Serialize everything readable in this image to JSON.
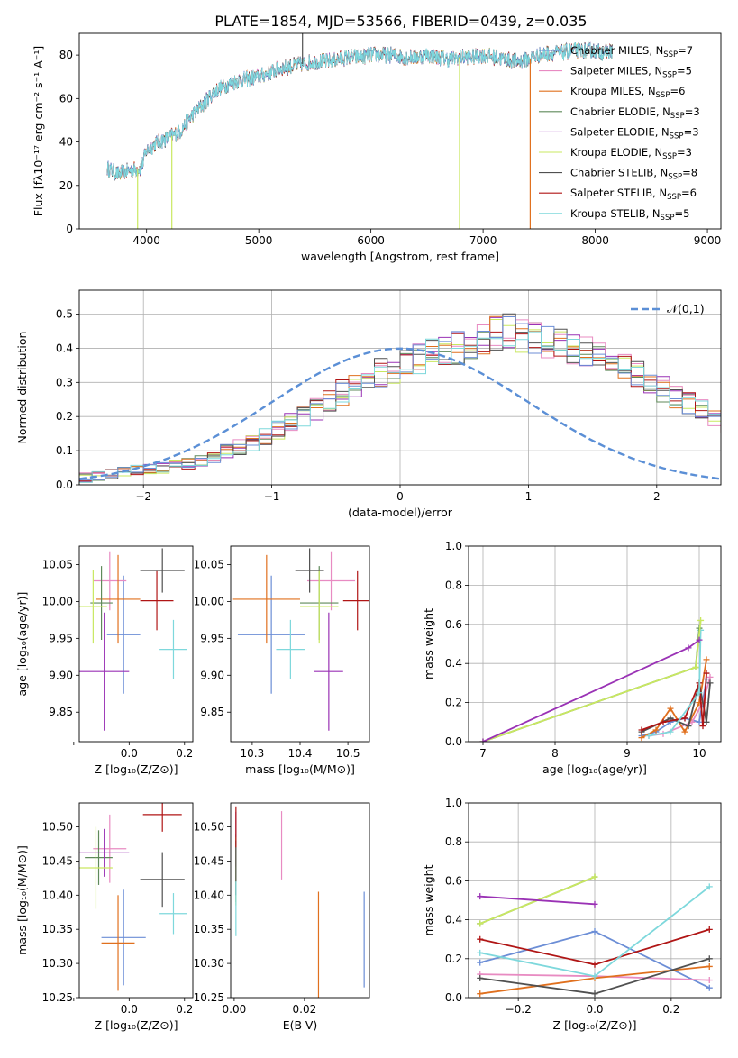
{
  "figure": {
    "title": "PLATE=1854, MJD=53566, FIBERID=0439, z=0.035"
  },
  "models": [
    {
      "name": "Chabrier MILES",
      "nssp": "7",
      "color": "#6c8ed6"
    },
    {
      "name": "Salpeter MILES",
      "nssp": "5",
      "color": "#e88bc2"
    },
    {
      "name": "Kroupa MILES",
      "nssp": "6",
      "color": "#e0701e"
    },
    {
      "name": "Chabrier ELODIE",
      "nssp": "3",
      "color": "#5f8a5a"
    },
    {
      "name": "Salpeter ELODIE",
      "nssp": "3",
      "color": "#9a32b5"
    },
    {
      "name": "Kroupa ELODIE",
      "nssp": "3",
      "color": "#c9e860"
    },
    {
      "name": "Chabrier STELIB",
      "nssp": "8",
      "color": "#505050"
    },
    {
      "name": "Salpeter STELIB",
      "nssp": "6",
      "color": "#b01515"
    },
    {
      "name": "Kroupa STELIB",
      "nssp": "5",
      "color": "#7ed8dc"
    }
  ],
  "chart_data": [
    {
      "id": "spectrum",
      "type": "line",
      "xlabel": "wavelength [Angstrom, rest frame]",
      "ylabel": "Flux [fλ10⁻¹⁷ erg cm⁻² s⁻¹ A⁻¹]",
      "xlim": [
        3400,
        9120
      ],
      "ylim": [
        0,
        90
      ],
      "xticks": [
        4000,
        5000,
        6000,
        7000,
        8000,
        9000
      ],
      "yticks": [
        0,
        20,
        40,
        60,
        80
      ],
      "grid": false,
      "legend": "top-right",
      "continuum": [
        [
          3650,
          28
        ],
        [
          3750,
          25
        ],
        [
          3850,
          27
        ],
        [
          3950,
          28
        ],
        [
          4000,
          36
        ],
        [
          4100,
          40
        ],
        [
          4200,
          42
        ],
        [
          4300,
          45
        ],
        [
          4400,
          52
        ],
        [
          4500,
          57
        ],
        [
          4600,
          63
        ],
        [
          4700,
          66
        ],
        [
          4800,
          68
        ],
        [
          4900,
          69
        ],
        [
          5000,
          70
        ],
        [
          5100,
          72
        ],
        [
          5200,
          74
        ],
        [
          5300,
          75
        ],
        [
          5400,
          76
        ],
        [
          5500,
          77
        ],
        [
          5600,
          77
        ],
        [
          5700,
          78
        ],
        [
          5800,
          79
        ],
        [
          5900,
          79
        ],
        [
          6000,
          80
        ],
        [
          6100,
          80
        ],
        [
          6200,
          80
        ],
        [
          6300,
          79
        ],
        [
          6400,
          79
        ],
        [
          6500,
          80
        ],
        [
          6600,
          79
        ],
        [
          6700,
          78
        ],
        [
          6800,
          79
        ],
        [
          6900,
          79
        ],
        [
          7000,
          80
        ],
        [
          7100,
          79
        ],
        [
          7200,
          78
        ],
        [
          7300,
          77
        ],
        [
          7400,
          78
        ],
        [
          7500,
          80
        ],
        [
          7600,
          81
        ],
        [
          7700,
          81
        ],
        [
          7800,
          82
        ],
        [
          7900,
          82
        ],
        [
          8000,
          82
        ],
        [
          8100,
          81
        ],
        [
          8150,
          82
        ]
      ],
      "spikes": [
        {
          "x": 3920,
          "y": 0
        },
        {
          "x": 4225,
          "y": 0
        },
        {
          "x": 5390,
          "y": 92
        },
        {
          "x": 6790,
          "y": 0
        },
        {
          "x": 7420,
          "y": 0
        }
      ],
      "x_range_data": [
        3650,
        8150
      ],
      "noise_amplitude": 3.5
    },
    {
      "id": "residuals",
      "type": "histogram",
      "xlabel": "(data-model)/error",
      "ylabel": "Normed distribution",
      "xlim": [
        -2.5,
        2.5
      ],
      "ylim": [
        0,
        0.57
      ],
      "xticks": [
        -2,
        -1,
        0,
        1,
        2
      ],
      "yticks": [
        0.0,
        0.1,
        0.2,
        0.3,
        0.4,
        0.5
      ],
      "grid": true,
      "legend": "top-right",
      "reference": {
        "label": "𝒩(0,1)",
        "mean": 0,
        "sigma": 1,
        "color": "#5b8fd6"
      },
      "bin_width": 0.1,
      "bins_start": -2.5,
      "base_values": [
        0.02,
        0.025,
        0.03,
        0.035,
        0.04,
        0.045,
        0.05,
        0.055,
        0.06,
        0.07,
        0.08,
        0.1,
        0.11,
        0.12,
        0.14,
        0.16,
        0.18,
        0.2,
        0.22,
        0.25,
        0.27,
        0.29,
        0.31,
        0.33,
        0.34,
        0.35,
        0.37,
        0.38,
        0.39,
        0.4,
        0.41,
        0.43,
        0.44,
        0.45,
        0.44,
        0.43,
        0.42,
        0.41,
        0.4,
        0.39,
        0.38,
        0.36,
        0.34,
        0.32,
        0.3,
        0.28,
        0.26,
        0.24,
        0.22,
        0.2,
        0.18,
        0.16,
        0.14,
        0.12,
        0.1,
        0.09,
        0.08,
        0.07,
        0.06,
        0.05,
        0.05,
        0.045,
        0.04,
        0.035,
        0.03,
        0.03,
        0.025,
        0.025,
        0.02,
        0.02
      ]
    },
    {
      "id": "age-vs-Z",
      "type": "scatter",
      "xlabel": "Z [log₁₀(Z/Z⊙)]",
      "ylabel": "age  [log₁₀(age/yr)]",
      "xlim": [
        -0.18,
        0.23
      ],
      "ylim": [
        9.81,
        10.075
      ],
      "xticks": [
        -0.2,
        0.0,
        0.2
      ],
      "xtick_labels": [
        "",
        "0.0",
        "0.2"
      ],
      "yticks": [
        9.85,
        9.9,
        9.95,
        10.0,
        10.05
      ],
      "grid": false,
      "points": [
        {
          "m": 0,
          "x": -0.02,
          "y": 9.955,
          "xe": 0.06,
          "ye": 0.08
        },
        {
          "m": 1,
          "x": -0.07,
          "y": 10.028,
          "xe": 0.06,
          "ye": 0.04
        },
        {
          "m": 2,
          "x": -0.04,
          "y": 10.003,
          "xe": 0.08,
          "ye": 0.06
        },
        {
          "m": 3,
          "x": -0.1,
          "y": 9.998,
          "xe": 0.04,
          "ye": 0.05
        },
        {
          "m": 4,
          "x": -0.09,
          "y": 9.905,
          "xe": 0.09,
          "ye": 0.08
        },
        {
          "m": 5,
          "x": -0.13,
          "y": 9.993,
          "xe": 0.05,
          "ye": 0.05
        },
        {
          "m": 6,
          "x": 0.12,
          "y": 10.042,
          "xe": 0.08,
          "ye": 0.03
        },
        {
          "m": 7,
          "x": 0.1,
          "y": 10.001,
          "xe": 0.06,
          "ye": 0.04
        },
        {
          "m": 8,
          "x": 0.16,
          "y": 9.935,
          "xe": 0.05,
          "ye": 0.04
        }
      ]
    },
    {
      "id": "age-vs-mass",
      "type": "scatter",
      "xlabel": "mass [log₁₀(M/M⊙)]",
      "ylabel": "",
      "xlim": [
        10.255,
        10.545
      ],
      "ylim": [
        9.81,
        10.075
      ],
      "xticks": [
        10.3,
        10.4,
        10.5
      ],
      "yticks": [
        9.85,
        9.9,
        9.95,
        10.0,
        10.05
      ],
      "grid": false,
      "points": [
        {
          "m": 0,
          "x": 10.34,
          "y": 9.955,
          "xe": 0.07,
          "ye": 0.08
        },
        {
          "m": 1,
          "x": 10.465,
          "y": 10.028,
          "xe": 0.05,
          "ye": 0.04
        },
        {
          "m": 2,
          "x": 10.33,
          "y": 10.003,
          "xe": 0.07,
          "ye": 0.06
        },
        {
          "m": 3,
          "x": 10.44,
          "y": 9.998,
          "xe": 0.04,
          "ye": 0.05
        },
        {
          "m": 4,
          "x": 10.46,
          "y": 9.905,
          "xe": 0.03,
          "ye": 0.08
        },
        {
          "m": 5,
          "x": 10.44,
          "y": 9.993,
          "xe": 0.04,
          "ye": 0.05
        },
        {
          "m": 6,
          "x": 10.42,
          "y": 10.042,
          "xe": 0.03,
          "ye": 0.03
        },
        {
          "m": 7,
          "x": 10.52,
          "y": 10.001,
          "xe": 0.03,
          "ye": 0.04
        },
        {
          "m": 8,
          "x": 10.38,
          "y": 9.935,
          "xe": 0.03,
          "ye": 0.04
        }
      ]
    },
    {
      "id": "weight-vs-age",
      "type": "line",
      "xlabel": "age  [log₁₀(age/yr)]",
      "ylabel": "mass weight",
      "xlim": [
        6.8,
        10.3
      ],
      "ylim": [
        0,
        1
      ],
      "xticks": [
        7,
        8,
        9,
        10
      ],
      "yticks": [
        0.0,
        0.2,
        0.4,
        0.6,
        0.8,
        1.0
      ],
      "grid": true,
      "series": [
        {
          "m": 0,
          "x": [
            9.2,
            9.4,
            9.6,
            9.8,
            10.0,
            10.1
          ],
          "y": [
            0.03,
            0.05,
            0.1,
            0.12,
            0.1,
            0.32
          ]
        },
        {
          "m": 1,
          "x": [
            9.3,
            9.5,
            9.9,
            10.05,
            10.15
          ],
          "y": [
            0.03,
            0.04,
            0.1,
            0.2,
            0.33
          ]
        },
        {
          "m": 2,
          "x": [
            9.2,
            9.4,
            9.6,
            9.8,
            10.0,
            10.1
          ],
          "y": [
            0.02,
            0.06,
            0.17,
            0.05,
            0.2,
            0.42
          ]
        },
        {
          "m": 3,
          "x": [
            7.0,
            9.95,
            10.0
          ],
          "y": [
            0.0,
            0.38,
            0.58
          ]
        },
        {
          "m": 4,
          "x": [
            7.0,
            9.85,
            10.0
          ],
          "y": [
            0.0,
            0.48,
            0.52
          ]
        },
        {
          "m": 5,
          "x": [
            7.0,
            9.95,
            10.02
          ],
          "y": [
            0.0,
            0.38,
            0.62
          ]
        },
        {
          "m": 6,
          "x": [
            9.2,
            9.6,
            9.85,
            10.0,
            10.1,
            10.15
          ],
          "y": [
            0.05,
            0.12,
            0.08,
            0.3,
            0.1,
            0.3
          ]
        },
        {
          "m": 7,
          "x": [
            9.2,
            9.5,
            9.8,
            10.0,
            10.05,
            10.1
          ],
          "y": [
            0.06,
            0.1,
            0.12,
            0.3,
            0.08,
            0.35
          ]
        },
        {
          "m": 8,
          "x": [
            9.3,
            9.6,
            10.0,
            10.02
          ],
          "y": [
            0.03,
            0.05,
            0.25,
            0.57
          ]
        }
      ]
    },
    {
      "id": "mass-vs-Z",
      "type": "scatter",
      "xlabel": "Z [log₁₀(Z/Z⊙)]",
      "ylabel": "mass [log₁₀(M/M⊙)]",
      "xlim": [
        -0.18,
        0.23
      ],
      "ylim": [
        10.25,
        10.535
      ],
      "xticks": [
        -0.2,
        0.0,
        0.2
      ],
      "xtick_labels": [
        "",
        "0.0",
        "0.2"
      ],
      "yticks": [
        10.25,
        10.3,
        10.35,
        10.4,
        10.45,
        10.5
      ],
      "grid": false,
      "points": [
        {
          "m": 0,
          "x": -0.02,
          "y": 10.338,
          "xe": 0.08,
          "ye": 0.07
        },
        {
          "m": 1,
          "x": -0.07,
          "y": 10.468,
          "xe": 0.06,
          "ye": 0.05
        },
        {
          "m": 2,
          "x": -0.04,
          "y": 10.33,
          "xe": 0.06,
          "ye": 0.07
        },
        {
          "m": 3,
          "x": -0.11,
          "y": 10.455,
          "xe": 0.05,
          "ye": 0.04
        },
        {
          "m": 4,
          "x": -0.09,
          "y": 10.462,
          "xe": 0.09,
          "ye": 0.035
        },
        {
          "m": 5,
          "x": -0.12,
          "y": 10.44,
          "xe": 0.06,
          "ye": 0.06
        },
        {
          "m": 6,
          "x": 0.12,
          "y": 10.423,
          "xe": 0.08,
          "ye": 0.04
        },
        {
          "m": 7,
          "x": 0.12,
          "y": 10.518,
          "xe": 0.07,
          "ye": 0.025
        },
        {
          "m": 8,
          "x": 0.16,
          "y": 10.373,
          "xe": 0.05,
          "ye": 0.03
        }
      ]
    },
    {
      "id": "mass-vs-EBV",
      "type": "scatter",
      "xlabel": "E(B-V)",
      "ylabel": "",
      "xlim": [
        -0.001,
        0.0385
      ],
      "ylim": [
        10.25,
        10.535
      ],
      "xticks": [
        0.0,
        0.02
      ],
      "xtick_labels": [
        "0.00",
        "0.02"
      ],
      "yticks": [
        10.25,
        10.3,
        10.35,
        10.4,
        10.45,
        10.5
      ],
      "grid": false,
      "points": [
        {
          "m": 0,
          "x": 0.037,
          "y": 10.335,
          "xe": 0,
          "ye": 0.07
        },
        {
          "m": 1,
          "x": 0.0135,
          "y": 10.473,
          "xe": 0,
          "ye": 0.05
        },
        {
          "m": 2,
          "x": 0.024,
          "y": 10.315,
          "xe": 0,
          "ye": 0.09
        },
        {
          "m": 3,
          "x": 0.0005,
          "y": 10.44,
          "xe": 0,
          "ye": 0.05
        },
        {
          "m": 4,
          "x": 0.0005,
          "y": 10.482,
          "xe": 0,
          "ye": 0.04
        },
        {
          "m": 5,
          "x": 0.0005,
          "y": 10.435,
          "xe": 0,
          "ye": 0.05
        },
        {
          "m": 6,
          "x": 0.0005,
          "y": 10.44,
          "xe": 0,
          "ye": 0.04
        },
        {
          "m": 7,
          "x": 0.0005,
          "y": 10.5,
          "xe": 0,
          "ye": 0.03
        },
        {
          "m": 8,
          "x": 0.0005,
          "y": 10.38,
          "xe": 0,
          "ye": 0.04
        }
      ]
    },
    {
      "id": "weight-vs-Z",
      "type": "line",
      "xlabel": "Z [log₁₀(Z/Z⊙)]",
      "ylabel": "mass weight",
      "xlim": [
        -0.33,
        0.33
      ],
      "ylim": [
        0,
        1
      ],
      "xticks": [
        -0.2,
        0.0,
        0.2
      ],
      "yticks": [
        0.0,
        0.2,
        0.4,
        0.6,
        0.8,
        1.0
      ],
      "grid": true,
      "series": [
        {
          "m": 0,
          "x": [
            -0.3,
            0.0,
            0.3
          ],
          "y": [
            0.18,
            0.34,
            0.05
          ]
        },
        {
          "m": 1,
          "x": [
            -0.3,
            0.0,
            0.3
          ],
          "y": [
            0.12,
            0.11,
            0.09
          ]
        },
        {
          "m": 2,
          "x": [
            -0.3,
            0.0,
            0.3
          ],
          "y": [
            0.02,
            0.1,
            0.16
          ]
        },
        {
          "m": 3,
          "x": [
            -0.3,
            0.0
          ],
          "y": [
            0.38,
            0.62
          ]
        },
        {
          "m": 4,
          "x": [
            -0.3,
            0.0
          ],
          "y": [
            0.52,
            0.48
          ]
        },
        {
          "m": 5,
          "x": [
            -0.3,
            0.0
          ],
          "y": [
            0.38,
            0.62
          ]
        },
        {
          "m": 6,
          "x": [
            -0.3,
            0.0,
            0.3
          ],
          "y": [
            0.1,
            0.02,
            0.2
          ]
        },
        {
          "m": 7,
          "x": [
            -0.3,
            0.0,
            0.3
          ],
          "y": [
            0.3,
            0.17,
            0.35
          ]
        },
        {
          "m": 8,
          "x": [
            -0.3,
            0.0,
            0.3
          ],
          "y": [
            0.23,
            0.11,
            0.57
          ]
        }
      ]
    }
  ]
}
